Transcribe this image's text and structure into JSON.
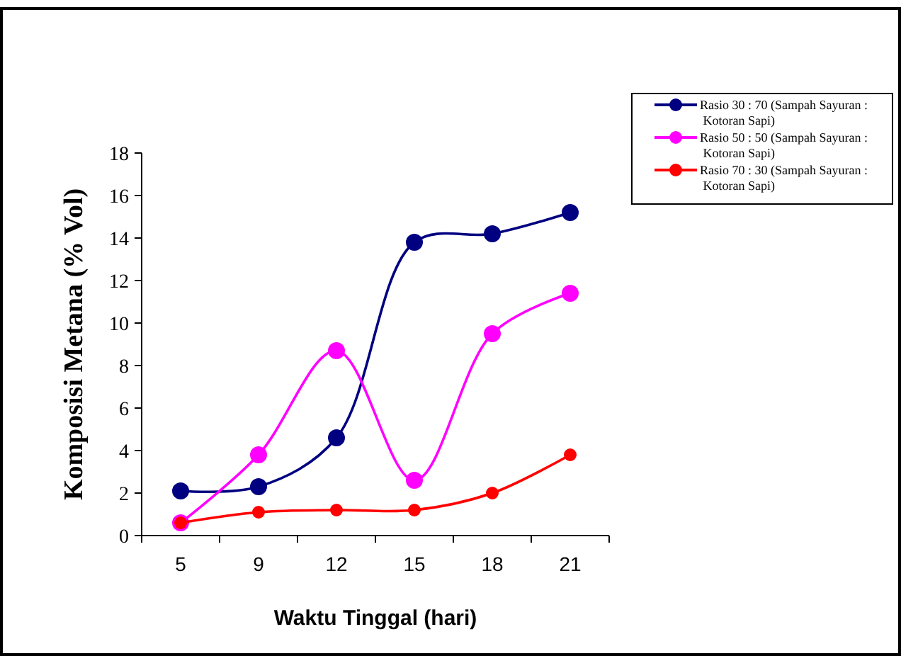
{
  "chart_data": {
    "type": "line",
    "xlabel": "Waktu Tinggal (hari)",
    "ylabel": "Komposisi Metana (% Vol)",
    "categories": [
      "5",
      "9",
      "12",
      "15",
      "18",
      "21"
    ],
    "series": [
      {
        "name": "Rasio 30 : 70 (Sampah Sayuran : Kotoran Sapi)",
        "color": "#000080",
        "values": [
          2.1,
          2.3,
          4.6,
          13.8,
          14.2,
          15.2
        ]
      },
      {
        "name": "Rasio 50 : 50 (Sampah Sayuran : Kotoran Sapi)",
        "color": "#ff00ff",
        "values": [
          0.6,
          3.8,
          8.7,
          2.6,
          9.5,
          11.4
        ]
      },
      {
        "name": "Rasio 70 : 30 (Sampah Sayuran : Kotoran Sapi)",
        "color": "#ff0000",
        "values": [
          0.6,
          1.1,
          1.2,
          1.2,
          2.0,
          3.8
        ]
      }
    ],
    "ylim": [
      0,
      18
    ],
    "yticks": [
      0,
      2,
      4,
      6,
      8,
      10,
      12,
      14,
      16,
      18
    ],
    "legend": "top right",
    "marker": "circle",
    "grid": false
  }
}
